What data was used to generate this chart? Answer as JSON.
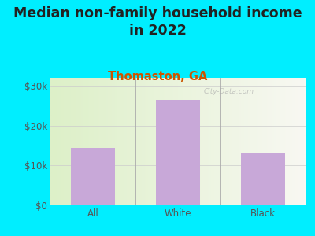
{
  "title": "Median non-family household income\nin 2022",
  "subtitle": "Thomaston, GA",
  "categories": [
    "All",
    "White",
    "Black"
  ],
  "values": [
    14500,
    26500,
    13000
  ],
  "bar_color": "#c8a8d8",
  "title_fontsize": 12.5,
  "subtitle_fontsize": 10.5,
  "subtitle_color": "#cc5500",
  "title_color": "#222222",
  "background_outer": "#00eeff",
  "background_inner_left": "#ddf0c8",
  "background_inner_right": "#f8f8f2",
  "ylim": [
    0,
    32000
  ],
  "yticks": [
    0,
    10000,
    20000,
    30000
  ],
  "ytick_labels": [
    "$0",
    "$10k",
    "$20k",
    "$30k"
  ],
  "watermark": "City-Data.com"
}
